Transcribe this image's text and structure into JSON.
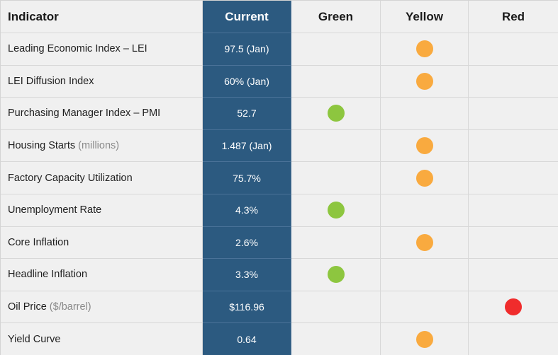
{
  "columns": {
    "indicator": "Indicator",
    "current": "Current",
    "green": "Green",
    "yellow": "Yellow",
    "red": "Red"
  },
  "status_colors": {
    "green": "#8dc63f",
    "yellow": "#f9aa3f",
    "red": "#f02c2c"
  },
  "rows": [
    {
      "label": "Leading Economic Index – LEI",
      "unit": "",
      "current": "97.5 (Jan)",
      "status": "yellow"
    },
    {
      "label": "LEI Diffusion Index",
      "unit": "",
      "current": "60% (Jan)",
      "status": "yellow"
    },
    {
      "label": "Purchasing Manager Index – PMI",
      "unit": "",
      "current": "52.7",
      "status": "green"
    },
    {
      "label": "Housing Starts",
      "unit": "(millions)",
      "current": "1.487 (Jan)",
      "status": "yellow"
    },
    {
      "label": "Factory Capacity Utilization",
      "unit": "",
      "current": "75.7%",
      "status": "yellow"
    },
    {
      "label": "Unemployment Rate",
      "unit": "",
      "current": "4.3%",
      "status": "green"
    },
    {
      "label": "Core Inflation",
      "unit": "",
      "current": "2.6%",
      "status": "yellow"
    },
    {
      "label": "Headline Inflation",
      "unit": "",
      "current": "3.3%",
      "status": "green"
    },
    {
      "label": "Oil Price",
      "unit": "($/barrel)",
      "current": "$116.96",
      "status": "red"
    },
    {
      "label": "Yield Curve",
      "unit": "",
      "current": "0.64",
      "status": "yellow"
    }
  ],
  "chart_data": {
    "type": "table",
    "columns": [
      "Indicator",
      "Current",
      "Green",
      "Yellow",
      "Red"
    ],
    "rows": [
      [
        "Leading Economic Index – LEI",
        "97.5 (Jan)",
        "",
        "●",
        ""
      ],
      [
        "LEI Diffusion Index",
        "60% (Jan)",
        "",
        "●",
        ""
      ],
      [
        "Purchasing Manager Index – PMI",
        "52.7",
        "●",
        "",
        ""
      ],
      [
        "Housing Starts (millions)",
        "1.487 (Jan)",
        "",
        "●",
        ""
      ],
      [
        "Factory Capacity Utilization",
        "75.7%",
        "",
        "●",
        ""
      ],
      [
        "Unemployment Rate",
        "4.3%",
        "●",
        "",
        ""
      ],
      [
        "Core Inflation",
        "2.6%",
        "",
        "●",
        ""
      ],
      [
        "Headline Inflation",
        "3.3%",
        "●",
        "",
        ""
      ],
      [
        "Oil Price ($/barrel)",
        "$116.96",
        "",
        "",
        "●"
      ],
      [
        "Yield Curve",
        "0.64",
        "",
        "●",
        ""
      ]
    ]
  }
}
